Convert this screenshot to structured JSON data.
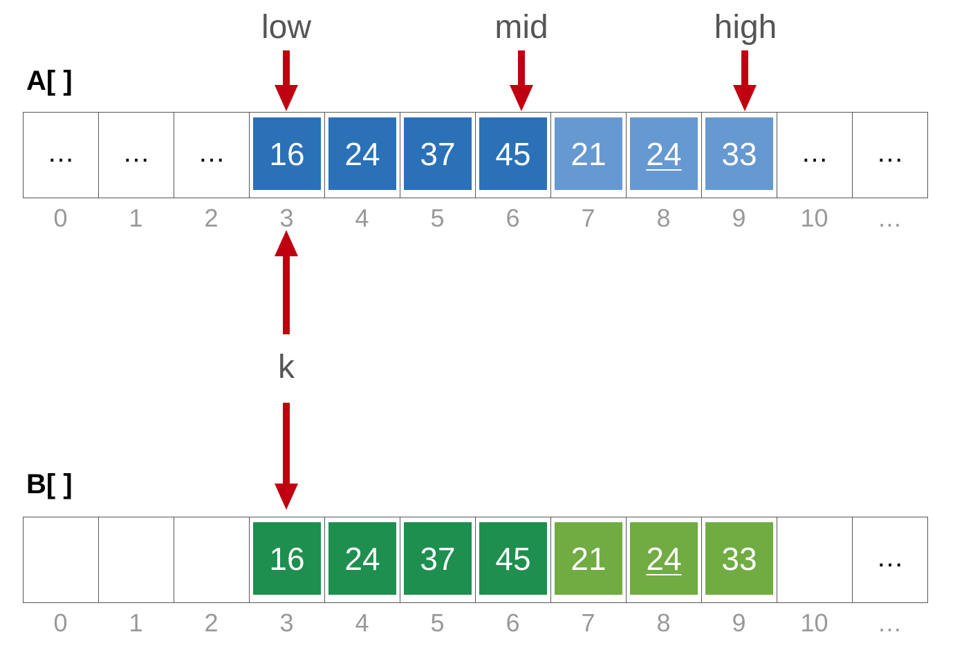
{
  "arrays": [
    {
      "label": "A[ ]",
      "cells": [
        {
          "text": "…",
          "kind": "empty"
        },
        {
          "text": "…",
          "kind": "empty"
        },
        {
          "text": "…",
          "kind": "empty"
        },
        {
          "text": "16",
          "kind": "dark"
        },
        {
          "text": "24",
          "kind": "dark"
        },
        {
          "text": "37",
          "kind": "dark"
        },
        {
          "text": "45",
          "kind": "dark"
        },
        {
          "text": "21",
          "kind": "light"
        },
        {
          "text": "24",
          "kind": "light",
          "underline": true
        },
        {
          "text": "33",
          "kind": "light"
        },
        {
          "text": "…",
          "kind": "empty"
        },
        {
          "text": "…",
          "kind": "empty"
        }
      ],
      "indices": [
        "0",
        "1",
        "2",
        "3",
        "4",
        "5",
        "6",
        "7",
        "8",
        "9",
        "10",
        "…"
      ],
      "colors": {
        "dark": "#2a71b8",
        "light": "#6699d2"
      }
    },
    {
      "label": "B[ ]",
      "cells": [
        {
          "text": "",
          "kind": "empty"
        },
        {
          "text": "",
          "kind": "empty"
        },
        {
          "text": "",
          "kind": "empty"
        },
        {
          "text": "16",
          "kind": "dark"
        },
        {
          "text": "24",
          "kind": "dark"
        },
        {
          "text": "37",
          "kind": "dark"
        },
        {
          "text": "45",
          "kind": "dark"
        },
        {
          "text": "21",
          "kind": "light"
        },
        {
          "text": "24",
          "kind": "light",
          "underline": true
        },
        {
          "text": "33",
          "kind": "light"
        },
        {
          "text": "",
          "kind": "empty"
        },
        {
          "text": "…",
          "kind": "empty"
        }
      ],
      "indices": [
        "0",
        "1",
        "2",
        "3",
        "4",
        "5",
        "6",
        "7",
        "8",
        "9",
        "10",
        "…"
      ],
      "colors": {
        "dark": "#1e8f4e",
        "light": "#70ac42"
      }
    }
  ],
  "pointers": {
    "low": "low",
    "mid": "mid",
    "high": "high",
    "k": "k"
  },
  "arrow_color": "#c00010"
}
